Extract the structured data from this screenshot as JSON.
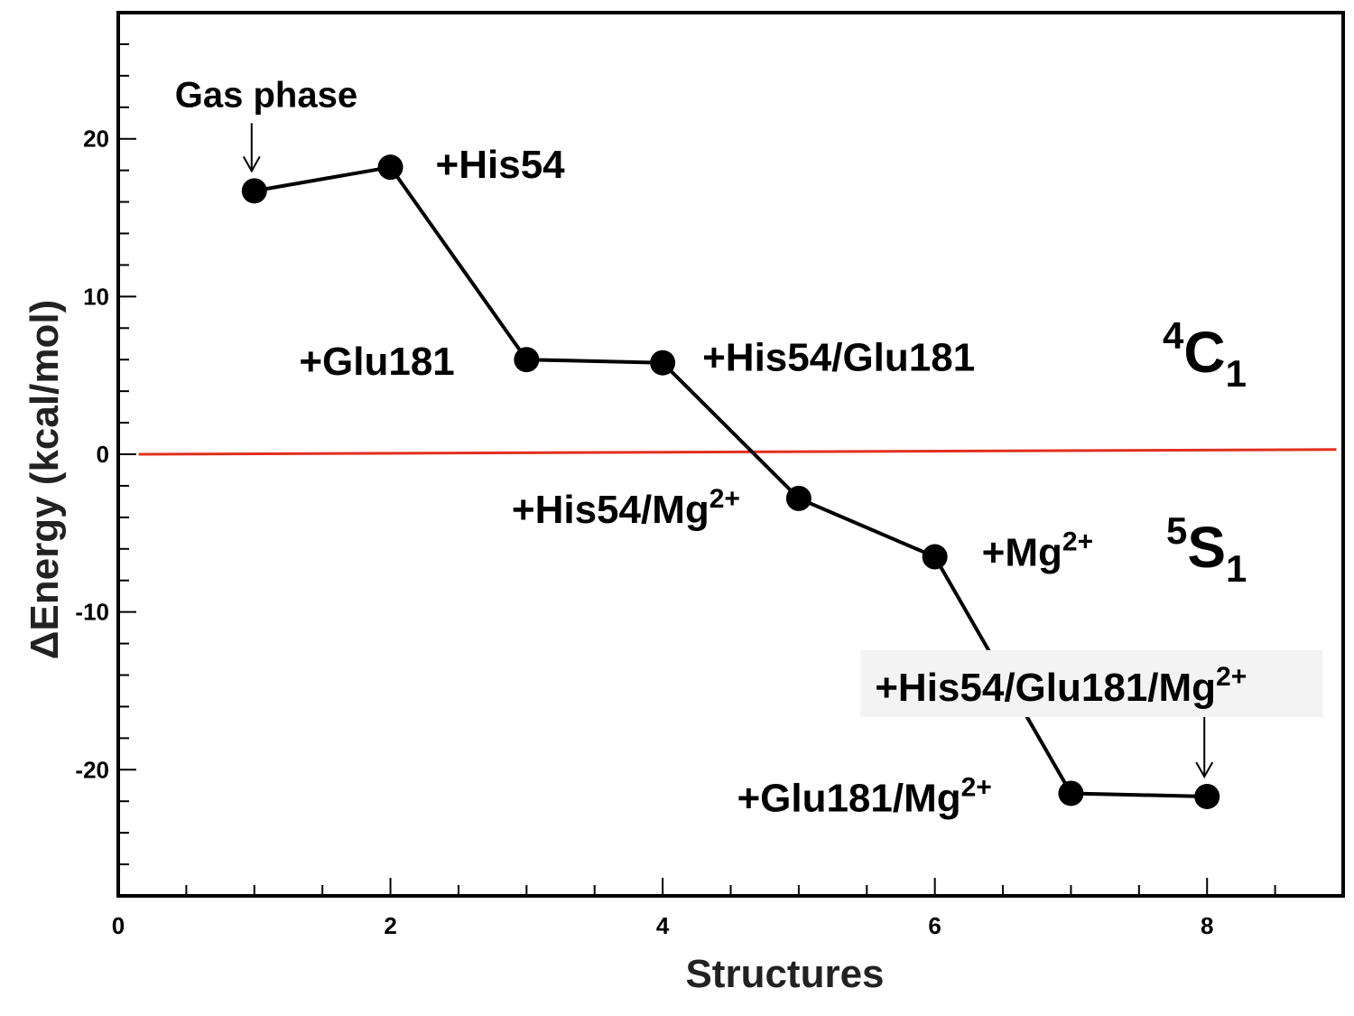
{
  "chart_data": {
    "type": "line",
    "xlabel": "Structures",
    "ylabel": "ΔEnergy (kcal/mol)",
    "xlim": [
      0,
      9
    ],
    "ylim": [
      -28,
      28
    ],
    "x_ticks": [
      0,
      2,
      4,
      6,
      8
    ],
    "x_tick_labels": [
      "0",
      "2",
      "4",
      "6",
      "8"
    ],
    "y_ticks": [
      -20,
      -10,
      0,
      10,
      20
    ],
    "y_tick_labels": [
      "-20",
      "-10",
      "0",
      "10",
      "20"
    ],
    "grid": false,
    "series": [
      {
        "x": [
          1,
          2,
          3,
          4,
          5,
          6,
          7,
          8
        ],
        "y": [
          16.7,
          18.2,
          6.0,
          5.8,
          -2.8,
          -6.5,
          -21.5,
          -21.7
        ],
        "color": "#000000",
        "marker": "circle"
      }
    ],
    "reference_line": {
      "y_start": 0.0,
      "y_end": 0.3,
      "color": "#e0301e"
    },
    "point_labels": [
      {
        "text": "Gas phase",
        "x": 1,
        "arrow": true
      },
      {
        "text": "+His54",
        "x": 2
      },
      {
        "text": "+Glu181",
        "x": 3
      },
      {
        "text": "+His54/Glu181",
        "x": 4
      },
      {
        "text": "+His54/Mg",
        "sup": "2+",
        "x": 5
      },
      {
        "text": "+Mg",
        "sup": "2+",
        "x": 6
      },
      {
        "text": "+Glu181/Mg",
        "sup": "2+",
        "x": 7
      },
      {
        "text": "+His54/Glu181/Mg",
        "sup": "2+",
        "x": 8,
        "arrow": true,
        "boxed": true
      }
    ],
    "regions": [
      {
        "sup": "4",
        "main": "C",
        "sub": "1",
        "position": "above zero line"
      },
      {
        "sup": "5",
        "main": "S",
        "sub": "1",
        "position": "below zero line"
      }
    ]
  }
}
